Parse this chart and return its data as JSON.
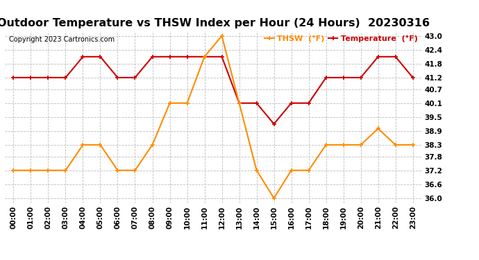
{
  "title": "Outdoor Temperature vs THSW Index per Hour (24 Hours)  20230316",
  "copyright": "Copyright 2023 Cartronics.com",
  "hours": [
    "00:00",
    "01:00",
    "02:00",
    "03:00",
    "04:00",
    "05:00",
    "06:00",
    "07:00",
    "08:00",
    "09:00",
    "10:00",
    "11:00",
    "12:00",
    "13:00",
    "14:00",
    "15:00",
    "16:00",
    "17:00",
    "18:00",
    "19:00",
    "20:00",
    "21:00",
    "22:00",
    "23:00"
  ],
  "temperature": [
    41.2,
    41.2,
    41.2,
    41.2,
    42.1,
    42.1,
    41.2,
    41.2,
    42.1,
    42.1,
    42.1,
    42.1,
    42.1,
    40.1,
    40.1,
    39.2,
    40.1,
    40.1,
    41.2,
    41.2,
    41.2,
    42.1,
    42.1,
    41.2
  ],
  "thsw": [
    37.2,
    37.2,
    37.2,
    37.2,
    38.3,
    38.3,
    37.2,
    37.2,
    38.3,
    40.1,
    40.1,
    42.1,
    43.0,
    40.1,
    37.2,
    36.0,
    37.2,
    37.2,
    38.3,
    38.3,
    38.3,
    39.0,
    38.3,
    38.3
  ],
  "temp_color": "#cc0000",
  "thsw_color": "#ff8c00",
  "ylim_min": 35.8,
  "ylim_max": 43.2,
  "yticks": [
    36.0,
    36.6,
    37.2,
    37.8,
    38.3,
    38.9,
    39.5,
    40.1,
    40.7,
    41.2,
    41.8,
    42.4,
    43.0
  ],
  "background_color": "#ffffff",
  "plot_bg_color": "#ffffff",
  "grid_color": "#bbbbbb",
  "title_fontsize": 11.5,
  "copyright_fontsize": 7,
  "tick_fontsize": 7.5,
  "legend_thsw": "THSW  (°F)",
  "legend_temp": "Temperature  (°F)"
}
